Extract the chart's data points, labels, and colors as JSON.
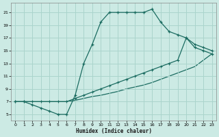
{
  "xlabel": "Humidex (Indice chaleur)",
  "bg_color": "#cceae4",
  "grid_color": "#aad4cc",
  "line_color": "#1a6b60",
  "xlim": [
    -0.5,
    23.5
  ],
  "ylim": [
    4,
    22.5
  ],
  "xticks": [
    0,
    1,
    2,
    3,
    4,
    5,
    6,
    7,
    8,
    9,
    10,
    11,
    12,
    13,
    14,
    15,
    16,
    17,
    18,
    19,
    20,
    21,
    22,
    23
  ],
  "yticks": [
    5,
    7,
    9,
    11,
    13,
    15,
    17,
    19,
    21
  ],
  "line1_x": [
    0,
    1,
    2,
    3,
    4,
    5,
    6,
    7,
    8,
    9,
    10,
    11,
    12,
    13,
    14,
    15,
    16,
    17,
    18,
    19,
    20,
    21,
    22,
    23
  ],
  "line1_y": [
    7,
    7,
    6.5,
    6,
    5.5,
    5,
    5,
    8,
    13,
    16,
    19.5,
    21,
    21,
    21,
    21,
    21,
    21.5,
    19.5,
    18,
    17.5,
    17,
    15.5,
    15,
    14.5
  ],
  "line2_x": [
    0,
    1,
    2,
    3,
    4,
    5,
    6,
    7,
    8,
    9,
    10,
    11,
    12,
    13,
    14,
    15,
    16,
    17,
    18,
    19,
    20,
    21,
    22,
    23
  ],
  "line2_y": [
    7,
    7,
    7,
    7,
    7,
    7,
    7,
    7.5,
    8,
    8.5,
    9,
    9.5,
    10,
    10.5,
    11,
    11.5,
    12,
    12.5,
    13,
    13.5,
    17,
    16,
    15.5,
    15
  ],
  "line3_x": [
    0,
    1,
    2,
    3,
    4,
    5,
    6,
    7,
    8,
    9,
    10,
    11,
    12,
    13,
    14,
    15,
    16,
    17,
    18,
    19,
    20,
    21,
    22,
    23
  ],
  "line3_y": [
    7,
    7,
    7,
    7,
    7,
    7,
    7,
    7.2,
    7.5,
    7.8,
    8,
    8.3,
    8.6,
    9,
    9.3,
    9.6,
    10,
    10.5,
    11,
    11.5,
    12,
    12.5,
    13.5,
    14.5
  ]
}
